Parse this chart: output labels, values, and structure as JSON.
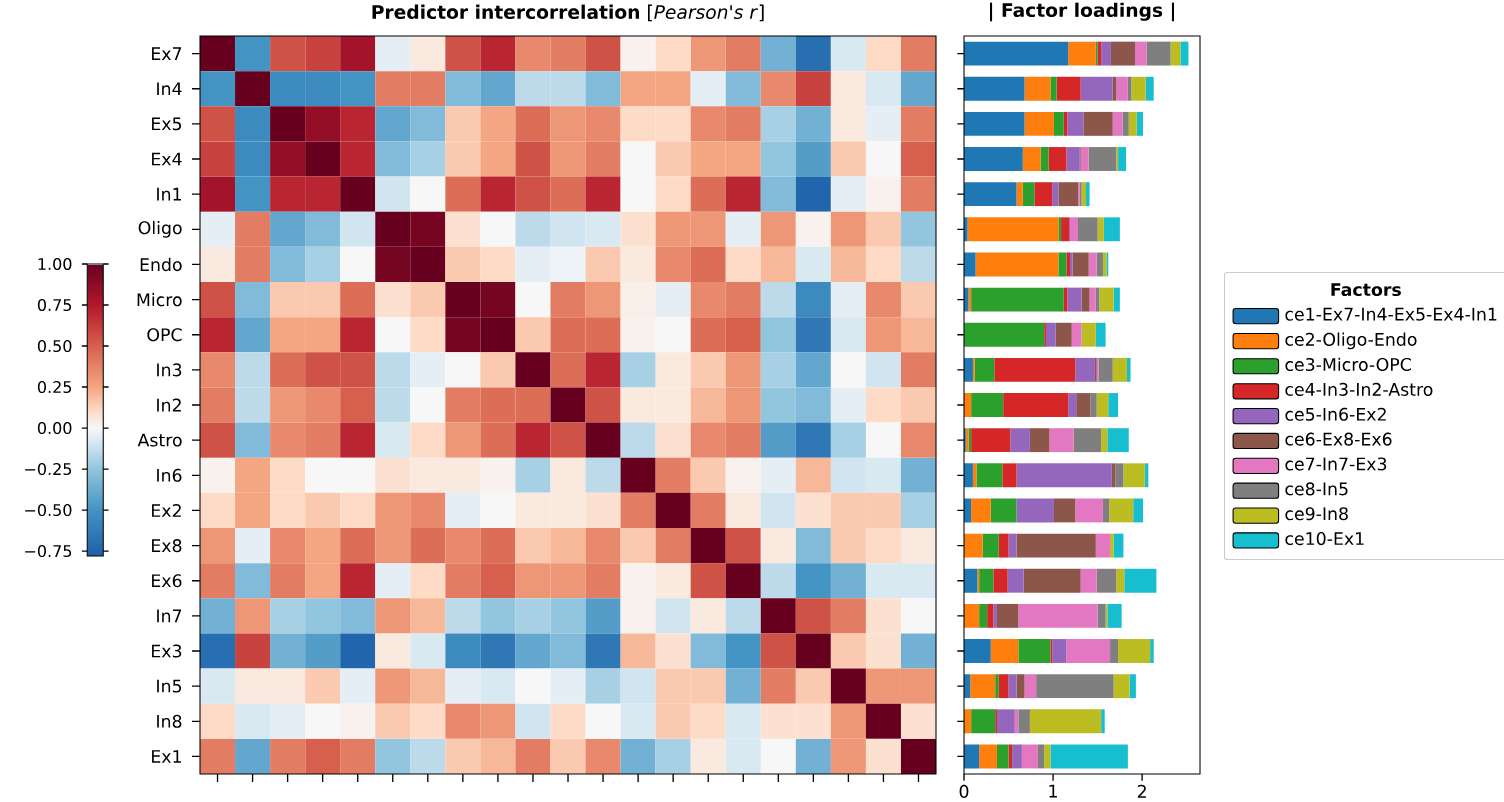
{
  "chart_data": [
    {
      "type": "heatmap",
      "title": "**Predictor intercorrelation** [*Pearson's r*]",
      "categories": [
        null,
        null,
        null,
        null,
        null,
        null,
        null,
        null,
        null,
        null,
        null,
        null,
        null,
        null,
        null,
        null,
        null,
        null,
        null,
        null,
        null
      ],
      "y_categories": [
        "Ex7",
        "In4",
        "Ex5",
        "Ex4",
        "In1",
        "Oligo",
        "Endo",
        "Micro",
        "OPC",
        "In3",
        "In2",
        "Astro",
        "In6",
        "Ex2",
        "Ex8",
        "Ex6",
        "In7",
        "Ex3",
        "In5",
        "In8",
        "Ex1"
      ],
      "cells": [
        [
          1,
          -0.5,
          0.55,
          0.6,
          0.8,
          -0.05,
          0.05,
          0.55,
          0.7,
          0.35,
          0.4,
          0.55,
          0.02,
          0.1,
          0.3,
          0.4,
          -0.35,
          -0.7,
          -0.08,
          0.1,
          0.4
        ],
        [
          -0.5,
          1,
          -0.55,
          -0.55,
          -0.5,
          0.4,
          0.4,
          -0.3,
          -0.4,
          -0.15,
          -0.15,
          -0.3,
          0.25,
          0.25,
          -0.05,
          -0.3,
          0.35,
          0.6,
          0.05,
          -0.08,
          -0.4
        ],
        [
          0.55,
          -0.55,
          1,
          0.85,
          0.7,
          -0.4,
          -0.3,
          0.15,
          0.25,
          0.45,
          0.3,
          0.35,
          0.1,
          0.1,
          0.35,
          0.4,
          -0.2,
          -0.35,
          0.05,
          -0.05,
          0.4
        ],
        [
          0.6,
          -0.55,
          0.85,
          1,
          0.7,
          -0.3,
          -0.2,
          0.15,
          0.25,
          0.55,
          0.3,
          0.4,
          0.0,
          0.15,
          0.25,
          0.25,
          -0.25,
          -0.45,
          0.15,
          0.0,
          0.5
        ],
        [
          0.8,
          -0.5,
          0.7,
          0.7,
          1,
          -0.1,
          0.0,
          0.45,
          0.7,
          0.55,
          0.45,
          0.7,
          0.0,
          0.1,
          0.45,
          0.7,
          -0.3,
          -0.75,
          -0.05,
          0.02,
          0.4
        ],
        [
          -0.05,
          0.4,
          -0.4,
          -0.3,
          -0.1,
          1,
          0.95,
          0.08,
          0.0,
          -0.15,
          -0.1,
          -0.08,
          0.08,
          0.3,
          0.3,
          -0.05,
          0.3,
          0.02,
          0.3,
          0.15,
          -0.25
        ],
        [
          0.05,
          0.4,
          -0.3,
          -0.2,
          0.0,
          0.95,
          1,
          0.15,
          0.1,
          -0.05,
          -0.03,
          0.15,
          0.05,
          0.35,
          0.45,
          0.1,
          0.2,
          -0.08,
          0.2,
          0.1,
          -0.15
        ],
        [
          0.55,
          -0.3,
          0.15,
          0.15,
          0.45,
          0.08,
          0.15,
          1,
          0.95,
          0.0,
          0.4,
          0.3,
          0.03,
          -0.05,
          0.35,
          0.4,
          -0.15,
          -0.55,
          -0.05,
          0.35,
          0.15
        ],
        [
          0.7,
          -0.4,
          0.25,
          0.25,
          0.7,
          0.0,
          0.1,
          0.95,
          1,
          0.15,
          0.45,
          0.45,
          0.02,
          0.0,
          0.45,
          0.5,
          -0.25,
          -0.65,
          -0.08,
          0.3,
          0.2
        ],
        [
          0.35,
          -0.15,
          0.45,
          0.55,
          0.55,
          -0.15,
          -0.05,
          0.0,
          0.15,
          1,
          0.45,
          0.7,
          -0.2,
          0.05,
          0.15,
          0.3,
          -0.2,
          -0.4,
          0.0,
          -0.1,
          0.4
        ],
        [
          0.4,
          -0.15,
          0.3,
          0.35,
          0.5,
          -0.15,
          0.0,
          0.4,
          0.45,
          0.45,
          1,
          0.55,
          0.05,
          0.05,
          0.2,
          0.3,
          -0.25,
          -0.3,
          -0.05,
          0.1,
          0.15
        ],
        [
          0.55,
          -0.3,
          0.35,
          0.4,
          0.7,
          -0.08,
          0.1,
          0.3,
          0.45,
          0.7,
          0.55,
          1,
          -0.15,
          0.08,
          0.35,
          0.4,
          -0.45,
          -0.65,
          -0.2,
          0.0,
          0.35
        ],
        [
          0.02,
          0.25,
          0.1,
          0.0,
          0.0,
          0.08,
          0.05,
          0.05,
          0.02,
          -0.2,
          0.05,
          -0.15,
          1,
          0.4,
          0.15,
          0.02,
          -0.05,
          0.2,
          -0.1,
          -0.08,
          -0.35
        ],
        [
          0.1,
          0.25,
          0.1,
          0.15,
          0.1,
          0.3,
          0.35,
          -0.05,
          0.0,
          0.05,
          0.05,
          0.08,
          0.4,
          1,
          0.4,
          0.05,
          -0.1,
          0.08,
          0.15,
          0.15,
          -0.2
        ],
        [
          0.3,
          -0.05,
          0.35,
          0.25,
          0.45,
          0.3,
          0.45,
          0.35,
          0.45,
          0.15,
          0.2,
          0.35,
          0.15,
          0.4,
          1,
          0.55,
          0.05,
          -0.3,
          0.15,
          0.1,
          0.05
        ],
        [
          0.4,
          -0.3,
          0.4,
          0.25,
          0.7,
          -0.05,
          0.1,
          0.4,
          0.5,
          0.3,
          0.3,
          0.4,
          0.02,
          0.05,
          0.55,
          1,
          -0.15,
          -0.5,
          -0.35,
          -0.08,
          -0.08
        ],
        [
          -0.35,
          0.3,
          -0.2,
          -0.25,
          -0.3,
          0.3,
          0.2,
          -0.15,
          -0.25,
          -0.2,
          -0.25,
          -0.45,
          0.02,
          -0.1,
          0.05,
          -0.15,
          1,
          0.55,
          0.4,
          0.08,
          0.0
        ],
        [
          -0.7,
          0.6,
          -0.35,
          -0.45,
          -0.75,
          0.05,
          -0.08,
          -0.55,
          -0.65,
          -0.4,
          -0.3,
          -0.65,
          0.2,
          0.08,
          -0.3,
          -0.5,
          0.55,
          1,
          0.15,
          0.08,
          -0.35
        ],
        [
          -0.08,
          0.05,
          0.05,
          0.15,
          -0.05,
          0.3,
          0.2,
          -0.05,
          -0.08,
          0.0,
          -0.05,
          -0.2,
          -0.1,
          0.15,
          0.15,
          -0.35,
          0.4,
          0.15,
          1,
          0.3,
          0.3
        ],
        [
          0.1,
          -0.08,
          -0.05,
          0.0,
          0.02,
          0.15,
          0.1,
          0.35,
          0.3,
          -0.1,
          0.1,
          0.0,
          -0.08,
          0.15,
          0.1,
          -0.08,
          0.08,
          0.08,
          0.3,
          1,
          0.08
        ],
        [
          0.4,
          -0.4,
          0.4,
          0.5,
          0.4,
          -0.25,
          -0.15,
          0.15,
          0.2,
          0.4,
          0.15,
          0.35,
          -0.35,
          -0.2,
          0.05,
          -0.08,
          0.0,
          -0.35,
          0.3,
          0.08,
          1
        ]
      ],
      "clim": [
        -0.78,
        1
      ],
      "cticks": [
        {
          "value": 1,
          "label": "1.00"
        },
        {
          "value": 0.75,
          "label": "0.75"
        },
        {
          "value": 0.5,
          "label": "0.50"
        },
        {
          "value": 0.25,
          "label": "0.25"
        },
        {
          "value": 0,
          "label": "0.00"
        },
        {
          "value": -0.25,
          "label": "−0.25"
        },
        {
          "value": -0.5,
          "label": "−0.50"
        },
        {
          "value": -0.75,
          "label": "−0.75"
        }
      ]
    },
    {
      "type": "bar",
      "title": "| Factor loadings |",
      "orientation": "horizontal",
      "stacked": true,
      "categories": [
        null,
        null,
        null,
        null,
        null,
        null,
        null,
        null,
        null,
        null,
        null,
        null,
        null,
        null,
        null,
        null,
        null,
        null,
        null,
        null,
        null
      ],
      "xlim": [
        0,
        2.65
      ],
      "xticks": [
        0,
        1,
        2
      ],
      "legend": "right",
      "legend_title": "Factors",
      "series": [
        {
          "name": "ce1-Ex7-In4-Ex5-Ex4-In1",
          "color": "#1f77b4",
          "values": [
            1.17,
            0.68,
            0.68,
            0.66,
            0.59,
            0.04,
            0.13,
            0.05,
            null,
            0.1,
            0,
            0.02,
            0.1,
            0.08,
            0,
            0.15,
            0,
            0.3,
            0.07,
            0,
            0.17
          ]
        },
        {
          "name": "ce2-Oligo-Endo",
          "color": "#ff7f0e",
          "values": [
            0.31,
            0.29,
            0.33,
            0.2,
            0.07,
            1.02,
            0.93,
            0.03,
            0,
            0.02,
            0.08,
            0.03,
            0.04,
            0.22,
            0.21,
            0.02,
            0.17,
            0.31,
            0.28,
            0.08,
            0.2
          ]
        },
        {
          "name": "ce3-Micro-OPC",
          "color": "#2ca02c",
          "values": [
            0.02,
            0.07,
            0.11,
            0.09,
            0.13,
            0.03,
            0.09,
            1.04,
            0.9,
            0.22,
            0.36,
            0.03,
            0.29,
            0.29,
            0.18,
            0.16,
            0.09,
            0.36,
            0.04,
            0.27,
            0.13
          ]
        },
        {
          "name": "ce4-In3-In2-Astro",
          "color": "#d62728",
          "values": [
            0.04,
            0.27,
            0.04,
            0.2,
            0.2,
            0.09,
            0.04,
            0.04,
            0.02,
            0.91,
            0.73,
            0.44,
            0.16,
            0,
            0.11,
            0.16,
            0.07,
            0.02,
            0.11,
            0.02,
            0.04
          ]
        },
        {
          "name": "ce5-In6-Ex2",
          "color": "#9467bd",
          "values": [
            0.11,
            0.36,
            0.18,
            0.15,
            0.07,
            0.01,
            0.03,
            0.16,
            0.11,
            0.22,
            0.09,
            0.22,
            1.07,
            0.42,
            0.09,
            0.18,
            0.04,
            0.16,
            0.09,
            0.2,
            0.11
          ]
        },
        {
          "name": "ce6-Ex8-Ex6",
          "color": "#8c564b",
          "values": [
            0.27,
            0.04,
            0.33,
            0.01,
            0.22,
            0,
            0.18,
            0.09,
            0.18,
            0.02,
            0.16,
            0.22,
            0.04,
            0.24,
            0.89,
            0.64,
            0.24,
            0,
            0.09,
            0,
            0
          ]
        },
        {
          "name": "ce7-In7-Ex3",
          "color": "#e377c2",
          "values": [
            0.13,
            0.13,
            0.11,
            0.09,
            0.02,
            0.09,
            0.09,
            0.07,
            0.11,
            0.02,
            0,
            0.27,
            0,
            0.31,
            0.16,
            0.18,
            0.89,
            0.49,
            0.13,
            0.04,
            0.18
          ]
        },
        {
          "name": "ce8-In5",
          "color": "#7f7f7f",
          "values": [
            0.27,
            0.04,
            0.07,
            0.31,
            0.02,
            0.22,
            0.07,
            0.04,
            0,
            0.16,
            0.07,
            0.31,
            0.09,
            0.07,
            0,
            0.22,
            0.09,
            0.09,
            0.87,
            0.13,
            0.07
          ]
        },
        {
          "name": "ce9-In8",
          "color": "#bcbd22",
          "values": [
            0.11,
            0.16,
            0.09,
            0.02,
            0.05,
            0.07,
            0.04,
            0.16,
            0.16,
            0.16,
            0.13,
            0.07,
            0.24,
            0.27,
            0.04,
            0.09,
            0.02,
            0.36,
            0.18,
            0.8,
            0.07
          ]
        },
        {
          "name": "ce10-Ex1",
          "color": "#17becf",
          "values": [
            0.09,
            0.09,
            0.07,
            0.09,
            0.04,
            0.18,
            0.02,
            0.07,
            0.11,
            0.04,
            0.11,
            0.24,
            0.04,
            0.11,
            0.11,
            0.36,
            0.16,
            0.04,
            0.07,
            0.04,
            0.87
          ]
        }
      ]
    }
  ]
}
